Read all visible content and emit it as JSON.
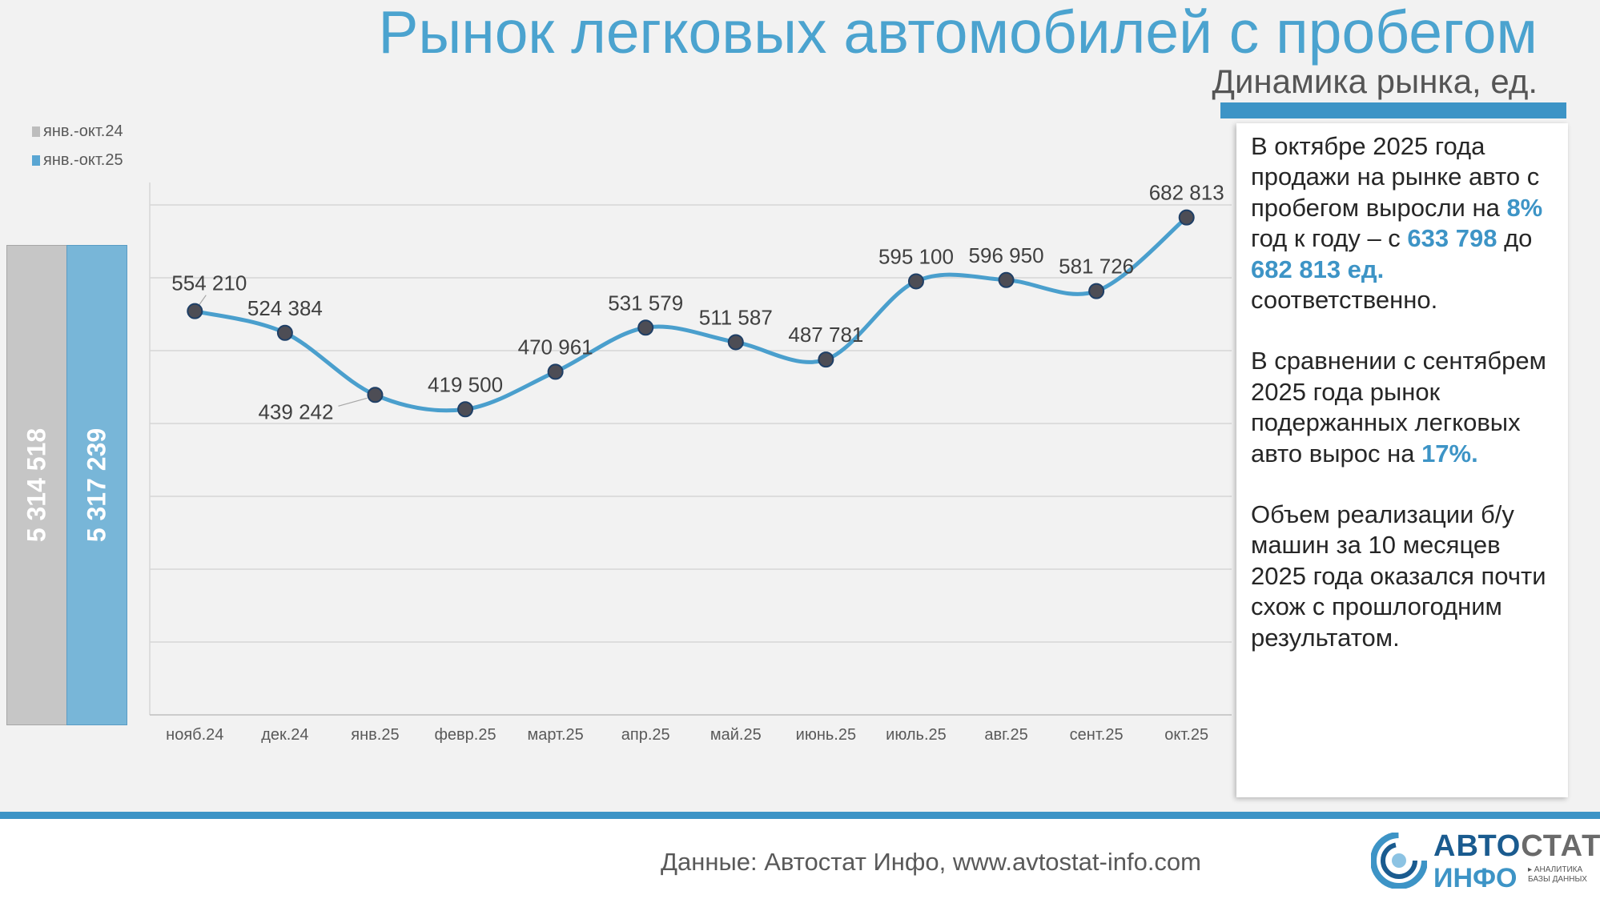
{
  "title": "Рынок легковых автомобилей с пробегом",
  "subtitle": "Динамика рынка, ед.",
  "colors": {
    "accent": "#3d94c6",
    "title": "#4ba3cf",
    "line": "#4a9fcd",
    "point": "#4d4d55",
    "bar_prev": "#c6c6c6",
    "bar_curr": "#78b6d8"
  },
  "legend": [
    {
      "label": "янв.-окт.24",
      "color": "#bdbdbd"
    },
    {
      "label": "янв.-окт.25",
      "color": "#5aa6d3"
    }
  ],
  "totals": [
    {
      "label": "5 314 518",
      "value": 5314518
    },
    {
      "label": "5 317 239",
      "value": 5317239
    }
  ],
  "chart_data": {
    "type": "line",
    "title": "",
    "xlabel": "",
    "ylabel": "",
    "categories": [
      "нояб.24",
      "дек.24",
      "янв.25",
      "февр.25",
      "март.25",
      "апр.25",
      "май.25",
      "июнь.25",
      "июль.25",
      "авг.25",
      "сент.25",
      "окт.25"
    ],
    "series": [
      {
        "values": [
          554210,
          524384,
          439242,
          419500,
          470961,
          531579,
          511587,
          487781,
          595100,
          596950,
          581726,
          682813
        ],
        "labels": [
          "554 210",
          "524 384",
          "439 242",
          "419 500",
          "470 961",
          "531 579",
          "511 587",
          "487 781",
          "595 100",
          "596 950",
          "581 726",
          "682 813"
        ]
      }
    ],
    "ylim": [
      0,
      800000
    ],
    "grid": true,
    "smooth": true,
    "markers": true
  },
  "commentary": {
    "p1": {
      "t1": "В октябре 2025 года продажи на рынке авто с пробегом выросли на ",
      "h1": "8%",
      "t2": " год к году – с ",
      "h2": "633 798",
      "t3": " до ",
      "h3": "682 813 ед.",
      "t4": " соответственно."
    },
    "p2": {
      "t1": "В сравнении с сентябрем 2025 года рынок подержанных легковых авто вырос на ",
      "h1": "17%."
    },
    "p3": "Объем реализации б/у машин за 10 месяцев 2025 года оказался почти схож с прошлогодним результатом."
  },
  "footer": {
    "source": "Данные: Автостат Инфо, www.avtostat-info.com"
  },
  "logo": {
    "word1_a": "АВТО",
    "word1_b": "СТАТ",
    "word2": "ИНФО",
    "tagline_1": "▸ АНАЛИТИКА",
    "tagline_2": "БАЗЫ ДАННЫХ"
  }
}
